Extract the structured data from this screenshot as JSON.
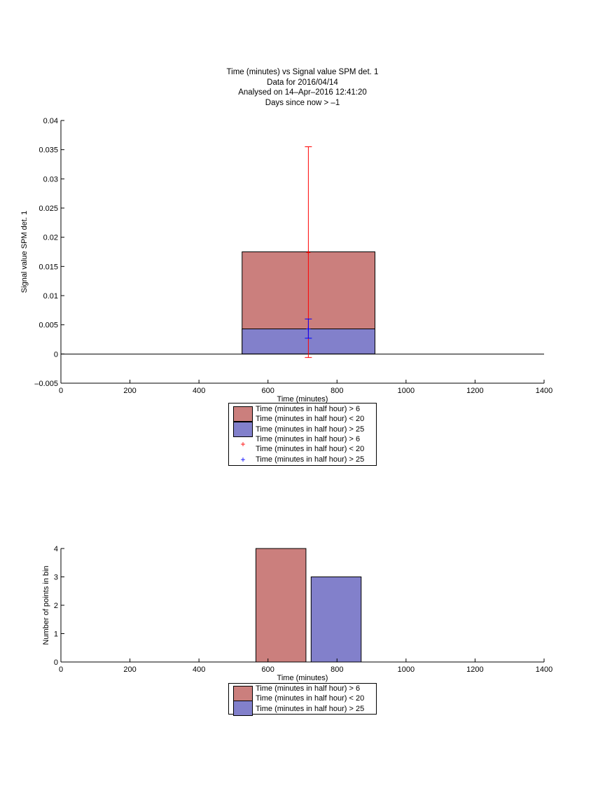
{
  "colors": {
    "red_bar": "#cb7f7d",
    "blue_bar": "#8280cb",
    "red_marker": "#ff0000",
    "blue_marker": "#0000ff",
    "axis": "#000000"
  },
  "header": {
    "line1": "Time (minutes) vs Signal value SPM det. 1",
    "line2": "Data for 2016/04/14",
    "line3": "Analysed on 14–Apr–2016 12:41:20",
    "line4": "Days since now > –1"
  },
  "legend_top": {
    "entry1_line1": "Time (minutes in half hour) > 6",
    "entry1_line2": "Time (minutes in half hour) < 20",
    "entry2": "Time (minutes in half hour) > 25",
    "entry3_line1": "Time (minutes in half hour) > 6",
    "entry3_line2": "Time (minutes in half hour) < 20",
    "entry4": "Time (minutes in half hour) > 25",
    "marker_symbol": "+"
  },
  "legend_bottom": {
    "entry1_line1": "Time (minutes in half hour) > 6",
    "entry1_line2": "Time (minutes in half hour) < 20",
    "entry2": "Time (minutes in half hour) > 25"
  },
  "chart_data": [
    {
      "type": "bar",
      "xlabel": "Time (minutes)",
      "ylabel": "Signal value SPM det. 1",
      "xlim": [
        0,
        1400
      ],
      "ylim": [
        -0.005,
        0.04
      ],
      "xticks": [
        "0",
        "200",
        "400",
        "600",
        "800",
        "1000",
        "1200",
        "1400"
      ],
      "yticks": [
        "–0.005",
        "0",
        "0.005",
        "0.01",
        "0.015",
        "0.02",
        "0.025",
        "0.03",
        "0.035",
        "0.04"
      ],
      "ytick_values": [
        -0.005,
        0,
        0.005,
        0.01,
        0.015,
        0.02,
        0.025,
        0.03,
        0.035,
        0.04
      ],
      "bars": [
        {
          "x_start": 525,
          "x_end": 910,
          "value": 0.0175
        },
        {
          "x_start": 525,
          "x_end": 910,
          "value": 0.0043
        }
      ],
      "errorbars": [
        {
          "x": 717,
          "y": 0.0174,
          "low": -0.0006,
          "high": 0.0355
        },
        {
          "x": 717,
          "y": 0.0043,
          "low": 0.0027,
          "high": 0.006
        }
      ]
    },
    {
      "type": "bar",
      "xlabel": "Time (minutes)",
      "ylabel": "Number of points in bin",
      "xlim": [
        0,
        1400
      ],
      "ylim": [
        0,
        4
      ],
      "xticks": [
        "0",
        "200",
        "400",
        "600",
        "800",
        "1000",
        "1200",
        "1400"
      ],
      "yticks": [
        "0",
        "1",
        "2",
        "3",
        "4"
      ],
      "ytick_values": [
        0,
        1,
        2,
        3,
        4
      ],
      "bars": [
        {
          "x_start": 565,
          "x_end": 710,
          "value": 4
        },
        {
          "x_start": 725,
          "x_end": 870,
          "value": 3
        }
      ]
    }
  ]
}
